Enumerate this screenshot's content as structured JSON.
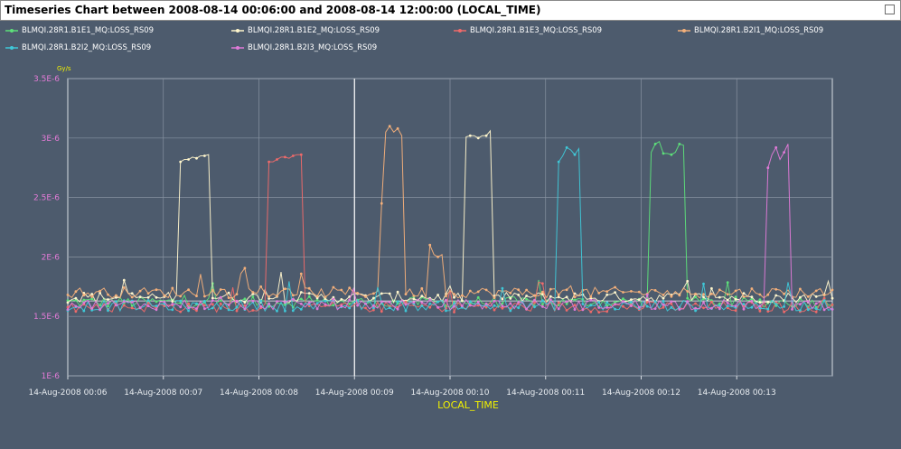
{
  "window": {
    "title": "Timeseries Chart between 2008-08-14 00:06:00 and 2008-08-14 12:00:00 (LOCAL_TIME)"
  },
  "legend": [
    {
      "name": "BLMQI.28R1.B1E1_MQ:LOSS_RS09",
      "color": "#5de07a"
    },
    {
      "name": "BLMQI.28R1.B1E2_MQ:LOSS_RS09",
      "color": "#fff6cc"
    },
    {
      "name": "BLMQI.28R1.B1E3_MQ:LOSS_RS09",
      "color": "#f06a6a"
    },
    {
      "name": "BLMQI.28R1.B2I1_MQ:LOSS_RS09",
      "color": "#f5b07a"
    },
    {
      "name": "BLMQI.28R1.B2I2_MQ:LOSS_RS09",
      "color": "#3fc8d8"
    },
    {
      "name": "BLMQI.28R1.B2I3_MQ:LOSS_RS09",
      "color": "#e07ad8"
    }
  ],
  "chart_data": {
    "type": "line",
    "title": "Timeseries Chart between 2008-08-14 00:06:00 and 2008-08-14 12:00:00 (LOCAL_TIME)",
    "xlabel": "LOCAL_TIME",
    "ylabel": "Gy/s",
    "ylim": [
      1e-06,
      3.5e-06
    ],
    "y_ticks": [
      "1E-6",
      "1.5E-6",
      "2E-6",
      "2.5E-6",
      "3E-6",
      "3.5E-6"
    ],
    "x_ticks": [
      "14-Aug-2008 00:06",
      "14-Aug-2008 00:07",
      "14-Aug-2008 00:08",
      "14-Aug-2008 00:09",
      "14-Aug-2008 00:10",
      "14-Aug-2008 00:11",
      "14-Aug-2008 00:12",
      "14-Aug-2008 00:13"
    ],
    "x_unit": "minutes after 00:06",
    "xlim": [
      0,
      8.0
    ],
    "grid": true,
    "series": [
      {
        "name": "BLMQI.28R1.B1E1_MQ:LOSS_RS09",
        "baseline": 1.62e-06,
        "peaks": [
          {
            "start": 6.1,
            "end": 6.45,
            "values": [
              2.88e-06,
              2.95e-06,
              2.97e-06,
              2.87e-06,
              2.86e-06,
              2.88e-06,
              2.95e-06,
              2.94e-06
            ]
          }
        ]
      },
      {
        "name": "BLMQI.28R1.B1E2_MQ:LOSS_RS09",
        "baseline": 1.66e-06,
        "peaks": [
          {
            "start": 1.15,
            "end": 1.5,
            "values": [
              2.8e-06,
              2.82e-06,
              2.84e-06,
              2.83e-06,
              2.85e-06,
              2.86e-06
            ]
          },
          {
            "start": 4.15,
            "end": 4.45,
            "values": [
              3.01e-06,
              3.02e-06,
              3e-06,
              3.02e-06,
              3.06e-06
            ]
          }
        ]
      },
      {
        "name": "BLMQI.28R1.B1E3_MQ:LOSS_RS09",
        "baseline": 1.58e-06,
        "peaks": [
          {
            "start": 2.1,
            "end": 2.45,
            "values": [
              2.8e-06,
              2.82e-06,
              2.84e-06,
              2.83e-06,
              2.85e-06,
              2.86e-06
            ]
          }
        ]
      },
      {
        "name": "BLMQI.28R1.B2I1_MQ:LOSS_RS09",
        "baseline": 1.7e-06,
        "peaks": [
          {
            "start": 3.25,
            "end": 3.5,
            "values": [
              2.45e-06,
              3.05e-06,
              3.1e-06,
              3.05e-06,
              3.08e-06,
              3.02e-06
            ]
          },
          {
            "start": 3.75,
            "end": 3.95,
            "values": [
              2.1e-06,
              2.02e-06,
              2e-06,
              2.02e-06
            ]
          }
        ]
      },
      {
        "name": "BLMQI.28R1.B2I2_MQ:LOSS_RS09",
        "baseline": 1.59e-06,
        "peaks": [
          {
            "start": 5.1,
            "end": 5.35,
            "values": [
              2.8e-06,
              2.85e-06,
              2.92e-06,
              2.9e-06,
              2.86e-06,
              2.91e-06
            ]
          }
        ]
      },
      {
        "name": "BLMQI.28R1.B2I3_MQ:LOSS_RS09",
        "baseline": 1.6e-06,
        "peaks": [
          {
            "start": 7.3,
            "end": 7.55,
            "values": [
              2.75e-06,
              2.86e-06,
              2.92e-06,
              2.82e-06,
              2.88e-06,
              2.95e-06
            ]
          }
        ]
      }
    ]
  }
}
